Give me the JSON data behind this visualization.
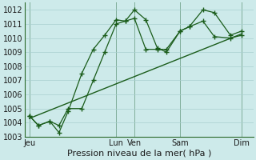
{
  "background_color": "#cdeaea",
  "grid_color": "#a8cece",
  "line_color": "#1a5c1a",
  "xlabel": "Pression niveau de la mer( hPa )",
  "ylim": [
    1003,
    1012.5
  ],
  "yticks": [
    1003,
    1004,
    1005,
    1006,
    1007,
    1008,
    1009,
    1010,
    1011,
    1012
  ],
  "xlim": [
    0,
    10.0
  ],
  "day_labels": [
    "Jeu",
    "Lun",
    "Ven",
    "Sam",
    "Dim"
  ],
  "day_positions": [
    0.2,
    4.0,
    4.8,
    6.8,
    9.5
  ],
  "vline_positions": [
    0.2,
    4.0,
    4.8,
    6.8,
    9.5
  ],
  "line1_x": [
    0.2,
    0.6,
    1.1,
    1.5,
    1.9,
    2.5,
    3.0,
    3.5,
    4.0,
    4.4,
    4.8,
    5.3,
    5.8,
    6.2,
    6.8,
    7.2,
    7.8,
    8.3,
    9.0,
    9.5
  ],
  "line1_y": [
    1004.5,
    1003.8,
    1004.1,
    1003.3,
    1004.8,
    1007.5,
    1009.2,
    1010.2,
    1011.3,
    1011.2,
    1012.0,
    1011.3,
    1009.3,
    1009.0,
    1010.5,
    1010.8,
    1012.0,
    1011.8,
    1010.2,
    1010.5
  ],
  "line2_x": [
    0.2,
    0.6,
    1.1,
    1.5,
    1.9,
    2.5,
    3.0,
    3.5,
    4.0,
    4.4,
    4.8,
    5.3,
    5.8,
    6.2,
    6.8,
    7.2,
    7.8,
    8.3,
    9.0,
    9.5
  ],
  "line2_y": [
    1004.5,
    1003.8,
    1004.1,
    1003.8,
    1005.0,
    1005.0,
    1007.0,
    1009.0,
    1011.0,
    1011.2,
    1011.4,
    1009.2,
    1009.2,
    1009.2,
    1010.5,
    1010.8,
    1011.2,
    1010.1,
    1010.0,
    1010.2
  ],
  "trend_x": [
    0.2,
    9.5
  ],
  "trend_y": [
    1004.3,
    1010.3
  ],
  "xlabel_fontsize": 8,
  "tick_fontsize": 7
}
